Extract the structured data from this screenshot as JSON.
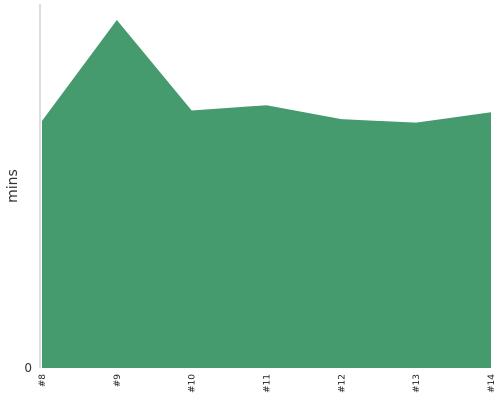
{
  "chart_data": {
    "type": "area",
    "categories": [
      "#8",
      "#9",
      "#10",
      "#11",
      "#12",
      "#13",
      "#14"
    ],
    "values": [
      71,
      100,
      74,
      75.5,
      71.5,
      70.5,
      73.5
    ],
    "ylabel": "mins",
    "y_tick_labels": [
      "0"
    ],
    "ylim": [
      0,
      105
    ],
    "color": "#459b6d",
    "grid": false
  }
}
